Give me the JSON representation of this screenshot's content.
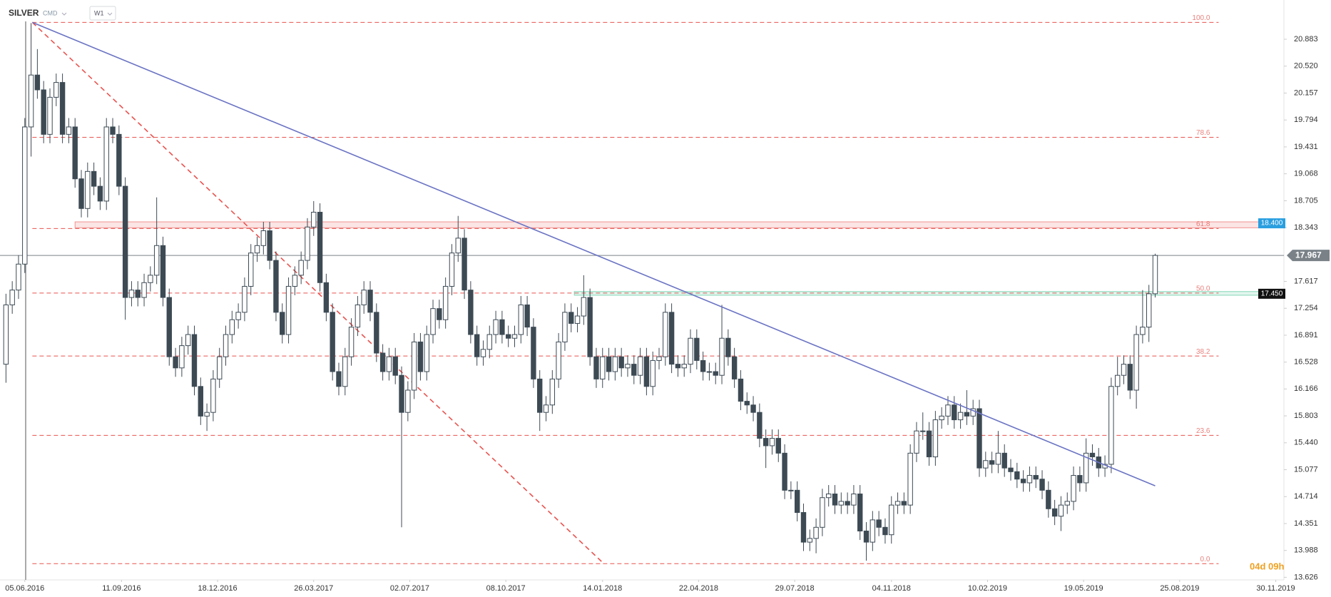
{
  "chart_data": {
    "type": "candlestick",
    "symbol": "SILVER",
    "market": "CMD",
    "interval": "W1",
    "timer": "04d 09h",
    "xlim": [
      -0.95,
      203.5
    ],
    "ylim": [
      13.591,
      21.412
    ],
    "xticks": [
      {
        "value": 3,
        "label": "05.06.2016"
      },
      {
        "value": 18.4,
        "label": "11.09.2016"
      },
      {
        "value": 33.7,
        "label": "18.12.2016"
      },
      {
        "value": 49,
        "label": "26.03.2017"
      },
      {
        "value": 64.3,
        "label": "02.07.2017"
      },
      {
        "value": 79.6,
        "label": "08.10.2017"
      },
      {
        "value": 95,
        "label": "14.01.2018"
      },
      {
        "value": 110.3,
        "label": "22.04.2018"
      },
      {
        "value": 125.6,
        "label": "29.07.2018"
      },
      {
        "value": 141,
        "label": "04.11.2018"
      },
      {
        "value": 156.3,
        "label": "10.02.2019"
      },
      {
        "value": 171.6,
        "label": "19.05.2019"
      },
      {
        "value": 186.9,
        "label": "25.08.2019"
      },
      {
        "value": 202.2,
        "label": "30.11.2019"
      }
    ],
    "yticks": [
      20.883,
      {
        "value": 20.52,
        "label": "20.520"
      },
      20.157,
      19.794,
      19.431,
      19.068,
      18.705,
      18.343,
      17.617,
      17.254,
      16.891,
      16.528,
      16.166,
      15.803,
      {
        "value": 15.44,
        "label": "15.440"
      },
      15.077,
      14.714,
      14.351,
      13.988,
      13.626
    ],
    "up_color": "#ffffff",
    "down_color": "#3d4a54",
    "candles": [
      [
        16.5,
        17.45,
        16.25,
        17.3
      ],
      [
        17.3,
        17.62,
        17.18,
        17.5
      ],
      [
        17.5,
        17.97,
        17.38,
        17.85
      ],
      [
        17.85,
        19.82,
        17.73,
        19.7
      ],
      [
        19.7,
        21.1,
        19.3,
        20.4
      ],
      [
        20.4,
        20.75,
        20.08,
        20.2
      ],
      [
        20.2,
        20.32,
        19.48,
        19.6
      ],
      [
        19.6,
        20.22,
        19.48,
        20.1
      ],
      [
        20.1,
        20.42,
        19.98,
        20.3
      ],
      [
        20.3,
        20.42,
        19.48,
        19.6
      ],
      [
        19.6,
        19.82,
        19.48,
        19.7
      ],
      [
        19.7,
        19.82,
        18.88,
        19.0
      ],
      [
        19.0,
        19.12,
        18.48,
        18.6
      ],
      [
        18.6,
        19.22,
        18.48,
        19.1
      ],
      [
        19.1,
        19.22,
        18.78,
        18.9
      ],
      [
        18.9,
        19.02,
        18.58,
        18.7
      ],
      [
        18.7,
        19.82,
        18.58,
        19.7
      ],
      [
        19.7,
        19.82,
        19.48,
        19.6
      ],
      [
        19.6,
        19.72,
        18.78,
        18.9
      ],
      [
        18.9,
        19.02,
        17.1,
        17.4
      ],
      [
        17.4,
        17.62,
        17.28,
        17.5
      ],
      [
        17.5,
        17.62,
        17.28,
        17.4
      ],
      [
        17.4,
        17.72,
        17.28,
        17.6
      ],
      [
        17.6,
        17.82,
        17.48,
        17.7
      ],
      [
        17.7,
        18.75,
        17.58,
        18.1
      ],
      [
        18.1,
        18.22,
        17.28,
        17.4
      ],
      [
        17.4,
        17.52,
        16.48,
        16.6
      ],
      [
        16.6,
        16.72,
        16.33,
        16.45
      ],
      [
        16.45,
        16.87,
        16.33,
        16.75
      ],
      [
        16.75,
        17.02,
        16.63,
        16.9
      ],
      [
        16.9,
        17.02,
        16.08,
        16.2
      ],
      [
        16.2,
        16.32,
        15.68,
        15.8
      ],
      [
        15.8,
        15.97,
        15.6,
        15.85
      ],
      [
        15.85,
        16.42,
        15.73,
        16.3
      ],
      [
        16.3,
        16.72,
        16.18,
        16.6
      ],
      [
        16.6,
        17.02,
        16.48,
        16.9
      ],
      [
        16.9,
        17.22,
        16.78,
        17.1
      ],
      [
        17.1,
        17.32,
        16.98,
        17.2
      ],
      [
        17.2,
        17.67,
        17.08,
        17.55
      ],
      [
        17.55,
        18.12,
        17.43,
        18.0
      ],
      [
        18.0,
        18.22,
        17.88,
        18.1
      ],
      [
        18.1,
        18.42,
        17.98,
        18.3
      ],
      [
        18.3,
        18.42,
        17.78,
        17.9
      ],
      [
        17.9,
        18.02,
        17.08,
        17.2
      ],
      [
        17.2,
        17.32,
        16.78,
        16.9
      ],
      [
        16.9,
        17.67,
        16.78,
        17.55
      ],
      [
        17.55,
        17.82,
        17.43,
        17.7
      ],
      [
        17.7,
        18.02,
        17.58,
        17.9
      ],
      [
        17.9,
        18.47,
        17.78,
        18.35
      ],
      [
        18.35,
        18.7,
        18.23,
        18.55
      ],
      [
        18.55,
        18.67,
        17.48,
        17.6
      ],
      [
        17.6,
        17.72,
        17.08,
        17.2
      ],
      [
        17.2,
        17.32,
        16.28,
        16.4
      ],
      [
        16.4,
        16.52,
        16.08,
        16.2
      ],
      [
        16.2,
        16.72,
        16.08,
        16.6
      ],
      [
        16.6,
        17.12,
        16.48,
        17.0
      ],
      [
        17.0,
        17.42,
        16.88,
        17.3
      ],
      [
        17.3,
        17.62,
        17.18,
        17.5
      ],
      [
        17.5,
        17.62,
        17.08,
        17.2
      ],
      [
        17.2,
        17.32,
        16.53,
        16.65
      ],
      [
        16.65,
        16.77,
        16.28,
        16.4
      ],
      [
        16.4,
        16.72,
        16.28,
        16.6
      ],
      [
        16.6,
        16.72,
        16.23,
        16.35
      ],
      [
        16.35,
        16.47,
        14.3,
        15.85
      ],
      [
        15.85,
        16.27,
        15.73,
        16.15
      ],
      [
        16.15,
        16.92,
        16.03,
        16.8
      ],
      [
        16.8,
        16.92,
        16.28,
        16.4
      ],
      [
        16.4,
        17.02,
        16.28,
        16.9
      ],
      [
        16.9,
        17.37,
        16.78,
        17.25
      ],
      [
        17.25,
        17.37,
        16.98,
        17.1
      ],
      [
        17.1,
        17.67,
        16.98,
        17.55
      ],
      [
        17.55,
        18.12,
        17.43,
        18.0
      ],
      [
        18.0,
        18.5,
        17.88,
        18.2
      ],
      [
        18.2,
        18.32,
        17.38,
        17.5
      ],
      [
        17.5,
        17.62,
        16.78,
        16.9
      ],
      [
        16.9,
        17.02,
        16.48,
        16.6
      ],
      [
        16.6,
        16.82,
        16.48,
        16.7
      ],
      [
        16.7,
        17.02,
        16.58,
        16.9
      ],
      [
        16.9,
        17.22,
        16.78,
        17.1
      ],
      [
        17.1,
        17.22,
        16.78,
        16.9
      ],
      [
        16.9,
        17.02,
        16.73,
        16.85
      ],
      [
        16.85,
        17.02,
        16.73,
        16.9
      ],
      [
        16.9,
        17.42,
        16.78,
        17.3
      ],
      [
        17.3,
        17.42,
        16.88,
        17.0
      ],
      [
        17.0,
        17.12,
        16.18,
        16.3
      ],
      [
        16.3,
        16.42,
        15.6,
        15.85
      ],
      [
        15.85,
        16.07,
        15.73,
        15.95
      ],
      [
        15.95,
        16.42,
        15.83,
        16.3
      ],
      [
        16.3,
        16.92,
        16.18,
        16.8
      ],
      [
        16.8,
        17.32,
        16.68,
        17.2
      ],
      [
        17.2,
        17.32,
        16.93,
        17.05
      ],
      [
        17.05,
        17.27,
        16.93,
        17.15
      ],
      [
        17.15,
        17.7,
        17.03,
        17.4
      ],
      [
        17.4,
        17.52,
        16.48,
        16.6
      ],
      [
        16.6,
        16.72,
        16.18,
        16.3
      ],
      [
        16.3,
        16.72,
        16.18,
        16.6
      ],
      [
        16.6,
        16.72,
        16.28,
        16.4
      ],
      [
        16.4,
        16.72,
        16.28,
        16.6
      ],
      [
        16.6,
        16.72,
        16.33,
        16.45
      ],
      [
        16.45,
        16.62,
        16.33,
        16.5
      ],
      [
        16.5,
        16.62,
        16.23,
        16.35
      ],
      [
        16.35,
        16.72,
        16.23,
        16.6
      ],
      [
        16.6,
        16.72,
        16.08,
        16.2
      ],
      [
        16.2,
        16.67,
        16.08,
        16.55
      ],
      [
        16.55,
        16.72,
        16.43,
        16.6
      ],
      [
        16.6,
        17.32,
        16.48,
        17.2
      ],
      [
        17.2,
        17.32,
        16.38,
        16.5
      ],
      [
        16.5,
        16.62,
        16.33,
        16.45
      ],
      [
        16.45,
        16.62,
        16.33,
        16.5
      ],
      [
        16.5,
        16.97,
        16.38,
        16.85
      ],
      [
        16.85,
        16.97,
        16.43,
        16.55
      ],
      [
        16.55,
        16.67,
        16.28,
        16.4
      ],
      [
        16.4,
        16.52,
        16.28,
        16.4
      ],
      [
        16.4,
        16.52,
        16.23,
        16.35
      ],
      [
        16.35,
        17.3,
        16.23,
        16.85
      ],
      [
        16.85,
        16.97,
        16.48,
        16.6
      ],
      [
        16.6,
        16.72,
        16.18,
        16.3
      ],
      [
        16.3,
        16.42,
        15.88,
        16.0
      ],
      [
        16.0,
        16.12,
        15.83,
        15.95
      ],
      [
        15.95,
        16.07,
        15.73,
        15.85
      ],
      [
        15.85,
        15.97,
        15.38,
        15.5
      ],
      [
        15.5,
        15.62,
        15.1,
        15.4
      ],
      [
        15.4,
        15.62,
        15.28,
        15.5
      ],
      [
        15.5,
        15.62,
        15.18,
        15.3
      ],
      [
        15.3,
        15.42,
        14.68,
        14.8
      ],
      [
        14.8,
        14.92,
        14.68,
        14.8
      ],
      [
        14.8,
        14.92,
        14.38,
        14.5
      ],
      [
        14.5,
        14.62,
        13.98,
        14.1
      ],
      [
        14.1,
        14.27,
        13.98,
        14.15
      ],
      [
        14.15,
        14.42,
        13.95,
        14.3
      ],
      [
        14.3,
        14.82,
        14.18,
        14.7
      ],
      [
        14.7,
        14.87,
        14.58,
        14.75
      ],
      [
        14.75,
        14.87,
        14.48,
        14.6
      ],
      [
        14.6,
        14.77,
        14.48,
        14.65
      ],
      [
        14.65,
        14.77,
        14.48,
        14.6
      ],
      [
        14.6,
        14.87,
        14.48,
        14.75
      ],
      [
        14.75,
        14.87,
        14.13,
        14.25
      ],
      [
        14.25,
        14.37,
        13.85,
        14.1
      ],
      [
        14.1,
        14.52,
        13.98,
        14.4
      ],
      [
        14.4,
        14.52,
        14.18,
        14.3
      ],
      [
        14.3,
        14.42,
        14.08,
        14.2
      ],
      [
        14.2,
        14.72,
        14.08,
        14.6
      ],
      [
        14.6,
        14.77,
        14.48,
        14.65
      ],
      [
        14.65,
        14.77,
        14.48,
        14.6
      ],
      [
        14.6,
        15.42,
        14.48,
        15.3
      ],
      [
        15.3,
        15.72,
        15.18,
        15.6
      ],
      [
        15.6,
        15.85,
        15.48,
        15.6
      ],
      [
        15.6,
        15.72,
        15.13,
        15.25
      ],
      [
        15.25,
        15.87,
        15.13,
        15.75
      ],
      [
        15.75,
        15.92,
        15.63,
        15.8
      ],
      [
        15.8,
        16.07,
        15.68,
        15.95
      ],
      [
        15.95,
        16.07,
        15.63,
        15.75
      ],
      [
        15.75,
        15.97,
        15.63,
        15.85
      ],
      [
        15.85,
        16.15,
        15.68,
        15.8
      ],
      [
        15.8,
        16.02,
        15.68,
        15.9
      ],
      [
        15.9,
        16.02,
        14.98,
        15.1
      ],
      [
        15.1,
        15.32,
        14.98,
        15.2
      ],
      [
        15.2,
        15.32,
        15.03,
        15.15
      ],
      [
        15.15,
        15.6,
        15.03,
        15.3
      ],
      [
        15.3,
        15.42,
        14.98,
        15.1
      ],
      [
        15.1,
        15.22,
        14.93,
        15.05
      ],
      [
        15.05,
        15.17,
        14.83,
        14.95
      ],
      [
        14.95,
        15.07,
        14.78,
        14.9
      ],
      [
        14.9,
        15.12,
        14.78,
        15.0
      ],
      [
        15.0,
        15.12,
        14.83,
        14.95
      ],
      [
        14.95,
        15.07,
        14.68,
        14.8
      ],
      [
        14.8,
        14.92,
        14.43,
        14.55
      ],
      [
        14.55,
        14.67,
        14.33,
        14.45
      ],
      [
        14.45,
        14.72,
        14.25,
        14.6
      ],
      [
        14.6,
        14.77,
        14.48,
        14.65
      ],
      [
        14.65,
        15.12,
        14.53,
        15.0
      ],
      [
        15.0,
        15.12,
        14.78,
        14.9
      ],
      [
        14.9,
        15.5,
        14.78,
        15.3
      ],
      [
        15.3,
        15.42,
        15.13,
        15.25
      ],
      [
        15.25,
        15.37,
        14.98,
        15.1
      ],
      [
        15.1,
        15.27,
        14.98,
        15.15
      ],
      [
        15.15,
        16.32,
        15.03,
        16.2
      ],
      [
        16.2,
        16.6,
        16.08,
        16.35
      ],
      [
        16.35,
        16.62,
        16.23,
        16.5
      ],
      [
        16.5,
        16.62,
        16.03,
        16.15
      ],
      [
        16.15,
        17.02,
        15.9,
        16.9
      ],
      [
        16.9,
        17.5,
        16.78,
        17.0
      ],
      [
        17.0,
        17.57,
        16.8,
        17.45
      ],
      [
        17.45,
        17.99,
        17.4,
        17.967
      ]
    ],
    "fib_levels": [
      {
        "label": "100.0",
        "price": 21.11
      },
      {
        "label": "78.6",
        "price": 19.56
      },
      {
        "label": "61.8",
        "price": 18.33
      },
      {
        "label": "50.0",
        "price": 17.46
      },
      {
        "label": "38.2",
        "price": 16.61
      },
      {
        "label": "23.6",
        "price": 15.54
      },
      {
        "label": "0.0",
        "price": 13.81
      }
    ],
    "trendline": {
      "start": [
        4.2,
        21.11
      ],
      "end": [
        183,
        14.86
      ],
      "color": "#6b74c4"
    },
    "fib_diagonal": {
      "start": [
        4.2,
        21.11
      ],
      "end": [
        95.2,
        13.81
      ],
      "color": "#e8534f"
    },
    "zones": [
      {
        "low": 18.34,
        "high": 18.42,
        "from": 11,
        "color": "#e8534f"
      },
      {
        "low": 17.43,
        "high": 17.48,
        "from": 90.5,
        "color": "#3fbf8f"
      }
    ],
    "price_badges": [
      {
        "value": 18.4,
        "label": "18.400",
        "color": "#2a9fe0",
        "pos": "inner"
      },
      {
        "value": 17.967,
        "label": "17.967",
        "color": "#7a8288",
        "pos": "axis"
      },
      {
        "value": 17.45,
        "label": "17.450",
        "color": "#111111",
        "pos": "inner"
      }
    ]
  }
}
